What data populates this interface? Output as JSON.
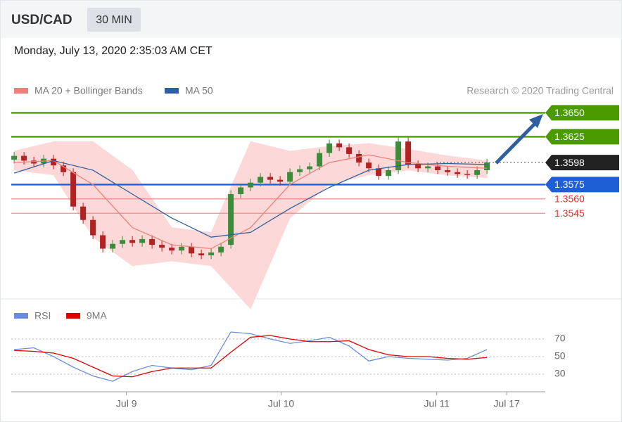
{
  "header": {
    "symbol": "USD/CAD",
    "interval": "30 MIN",
    "datetime": "Monday, July 13, 2020 2:35:03 AM CET"
  },
  "chart_data": [
    {
      "type": "candlestick",
      "credit": "Research © 2020 Trading Central",
      "ylim": [
        1.346,
        1.3665
      ],
      "xlim": [
        -0.15,
        53.85
      ],
      "up_color": "#3c8c3c",
      "down_color": "#b22222",
      "open": [
        1.3601,
        1.3605,
        1.36,
        1.3597,
        1.3602,
        1.3595,
        1.3588,
        1.3552,
        1.3538,
        1.3522,
        1.3508,
        1.3513,
        1.3517,
        1.3514,
        1.3518,
        1.3512,
        1.3509,
        1.3506,
        1.351,
        1.3503,
        1.3501,
        1.3504,
        1.3512,
        1.3565,
        1.3572,
        1.3577,
        1.3583,
        1.358,
        1.3578,
        1.3588,
        1.3591,
        1.3594,
        1.3608,
        1.3618,
        1.3614,
        1.3607,
        1.3598,
        1.3592,
        1.3584,
        1.359,
        1.362,
        1.3596,
        1.3592,
        1.3594,
        1.359,
        1.3588,
        1.3586,
        1.3585,
        1.359
      ],
      "high": [
        1.3609,
        1.3609,
        1.3604,
        1.3606,
        1.3606,
        1.3599,
        1.3592,
        1.3556,
        1.3542,
        1.3526,
        1.3517,
        1.3521,
        1.3521,
        1.3522,
        1.3522,
        1.3516,
        1.3513,
        1.3514,
        1.3514,
        1.3507,
        1.3508,
        1.3514,
        1.3569,
        1.3576,
        1.3581,
        1.3587,
        1.3587,
        1.3584,
        1.3592,
        1.3595,
        1.3598,
        1.3612,
        1.3622,
        1.3622,
        1.3618,
        1.3611,
        1.3602,
        1.3596,
        1.3594,
        1.3624,
        1.3624,
        1.36,
        1.3598,
        1.3598,
        1.3594,
        1.3592,
        1.359,
        1.3594,
        1.3602
      ],
      "low": [
        1.3597,
        1.3596,
        1.3593,
        1.3593,
        1.3591,
        1.3584,
        1.3548,
        1.3534,
        1.3518,
        1.3504,
        1.3504,
        1.3509,
        1.351,
        1.351,
        1.3508,
        1.3505,
        1.3502,
        1.3502,
        1.3499,
        1.3497,
        1.3497,
        1.35,
        1.3508,
        1.3561,
        1.3568,
        1.3573,
        1.3576,
        1.3574,
        1.3574,
        1.3584,
        1.3587,
        1.359,
        1.3604,
        1.361,
        1.3603,
        1.3594,
        1.3588,
        1.358,
        1.358,
        1.3586,
        1.3592,
        1.3588,
        1.3588,
        1.3586,
        1.3584,
        1.3582,
        1.3581,
        1.3581,
        1.3586
      ],
      "close": [
        1.3605,
        1.36,
        1.3597,
        1.3602,
        1.3595,
        1.3588,
        1.3552,
        1.3538,
        1.3522,
        1.3508,
        1.3513,
        1.3517,
        1.3514,
        1.3518,
        1.3512,
        1.3509,
        1.3506,
        1.351,
        1.3503,
        1.3501,
        1.3504,
        1.351,
        1.3565,
        1.3572,
        1.3577,
        1.3583,
        1.358,
        1.3578,
        1.3588,
        1.3591,
        1.3594,
        1.3608,
        1.3618,
        1.3614,
        1.3607,
        1.3598,
        1.3592,
        1.3584,
        1.359,
        1.362,
        1.3596,
        1.3592,
        1.3594,
        1.359,
        1.3588,
        1.3586,
        1.3585,
        1.359,
        1.3598
      ],
      "series": [
        {
          "name": "MA 20 + Bollinger Bands",
          "color": "#e8837b",
          "band_color": "#fdd8d8",
          "x": [
            0,
            4,
            8,
            12,
            16,
            20,
            24,
            28,
            32,
            36,
            40,
            44,
            48
          ],
          "values": [
            1.3598,
            1.36,
            1.3575,
            1.353,
            1.3512,
            1.3508,
            1.353,
            1.3575,
            1.3598,
            1.3606,
            1.3598,
            1.3594,
            1.3592
          ],
          "upper": [
            1.361,
            1.362,
            1.362,
            1.359,
            1.353,
            1.3525,
            1.362,
            1.361,
            1.3615,
            1.3618,
            1.3612,
            1.3605,
            1.36
          ],
          "lower": [
            1.359,
            1.3585,
            1.352,
            1.349,
            1.3495,
            1.349,
            1.3445,
            1.354,
            1.3575,
            1.3585,
            1.359,
            1.3585,
            1.3582
          ]
        },
        {
          "name": "MA 50",
          "color": "#2f5f9e",
          "x": [
            0,
            4,
            8,
            12,
            16,
            20,
            24,
            28,
            32,
            36,
            40,
            44,
            48
          ],
          "values": [
            1.3587,
            1.36,
            1.359,
            1.3565,
            1.354,
            1.352,
            1.3525,
            1.355,
            1.3572,
            1.359,
            1.3596,
            1.3597,
            1.3596
          ]
        }
      ],
      "levels": [
        {
          "value": 1.365,
          "label": "1.3650",
          "color": "#4a9a00",
          "style": "solid",
          "tag": true
        },
        {
          "value": 1.3625,
          "label": "1.3625",
          "color": "#4a9a00",
          "style": "solid",
          "tag": true
        },
        {
          "value": 1.3598,
          "label": "1.3598",
          "color": "#222222",
          "style": "dotted",
          "tag": true
        },
        {
          "value": 1.3575,
          "label": "1.3575",
          "color": "#1f5fd6",
          "style": "solid",
          "tag": true
        },
        {
          "value": 1.356,
          "label": "1.3560",
          "color": "#f08080",
          "style": "thin",
          "tag": false
        },
        {
          "value": 1.3545,
          "label": "1.3545",
          "color": "#f08080",
          "style": "thin",
          "tag": false
        }
      ]
    },
    {
      "type": "line",
      "ylim": [
        10,
        100
      ],
      "yticks": [
        30,
        50,
        70
      ],
      "xlim": [
        -0.15,
        53.85
      ],
      "xticks": [
        {
          "value": 11.4,
          "label": "Jul 9"
        },
        {
          "value": 27.1,
          "label": "Jul 10"
        },
        {
          "value": 42.9,
          "label": "Jul 11"
        },
        {
          "value": 50,
          "label": "Jul 17"
        }
      ],
      "series": [
        {
          "name": "RSI",
          "color": "#6a8ddb",
          "x": [
            0,
            2,
            4,
            6,
            8,
            10,
            12,
            14,
            16,
            18,
            20,
            22,
            24,
            26,
            28,
            30,
            32,
            34,
            36,
            38,
            40,
            42,
            44,
            46,
            48
          ],
          "values": [
            58,
            60,
            50,
            38,
            28,
            22,
            33,
            40,
            37,
            35,
            40,
            78,
            76,
            70,
            65,
            68,
            72,
            62,
            45,
            50,
            48,
            47,
            46,
            48,
            58
          ]
        },
        {
          "name": "9MA",
          "color": "#e00000",
          "x": [
            0,
            2,
            4,
            6,
            8,
            10,
            12,
            14,
            16,
            18,
            20,
            22,
            24,
            26,
            28,
            30,
            32,
            34,
            36,
            38,
            40,
            42,
            44,
            46,
            48
          ],
          "values": [
            57,
            56,
            54,
            48,
            38,
            28,
            27,
            33,
            37,
            37,
            37,
            55,
            72,
            74,
            70,
            67,
            67,
            68,
            58,
            52,
            50,
            50,
            48,
            47,
            49
          ]
        }
      ]
    }
  ]
}
